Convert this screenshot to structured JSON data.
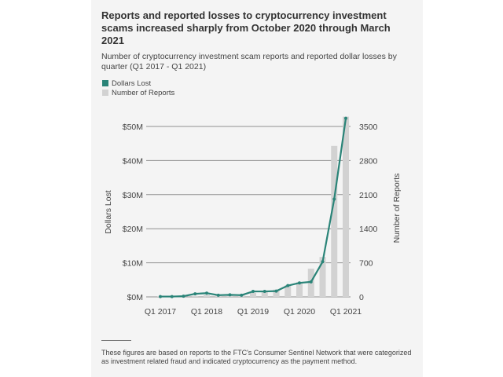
{
  "title": "Reports and reported losses to cryptocurrency investment scams increased sharply from October 2020 through March 2021",
  "subtitle": "Number of cryptocurrency investment scam reports and reported dollar losses by quarter (Q1 2017 - Q1 2021)",
  "legend": [
    {
      "label": "Dollars Lost",
      "color": "#2a8478"
    },
    {
      "label": "Number of Reports",
      "color": "#d2d2d2"
    }
  ],
  "note": "These figures are based on reports to the FTC's Consumer Sentinel Network that were categorized as investment related fraud and indicated cryptocurrency as the payment method.",
  "chart_data": {
    "type": "bar",
    "title": "Reports and reported losses to cryptocurrency investment scams increased sharply from October 2020 through March 2021",
    "subtitle": "Number of cryptocurrency investment scam reports and reported dollar losses by quarter (Q1 2017 - Q1 2021)",
    "ylabel": "Dollars Lost",
    "y2label": "Number of Reports",
    "categories": [
      "Q1 2017",
      "Q2 2017",
      "Q3 2017",
      "Q4 2017",
      "Q1 2018",
      "Q2 2018",
      "Q3 2018",
      "Q4 2018",
      "Q1 2019",
      "Q2 2019",
      "Q3 2019",
      "Q4 2019",
      "Q1 2020",
      "Q2 2020",
      "Q3 2020",
      "Q4 2020",
      "Q1 2021"
    ],
    "x_tick_labels": [
      "Q1 2017",
      "Q1 2018",
      "Q1 2019",
      "Q1 2020",
      "Q1 2021"
    ],
    "y_ticks_labels": [
      "$0M",
      "$10M",
      "$20M",
      "$30M",
      "$40M",
      "$50M"
    ],
    "y2_ticks": [
      0,
      700,
      1400,
      2100,
      2800,
      3500
    ],
    "ylim": [
      0,
      50
    ],
    "y2lim": [
      0,
      3500
    ],
    "legend_position": "top-left",
    "grid": true,
    "series": [
      {
        "name": "Number of Reports",
        "type": "bar",
        "axis": "right",
        "color": "#d2d2d2",
        "values": [
          5,
          10,
          15,
          20,
          40,
          45,
          40,
          50,
          85,
          110,
          150,
          240,
          300,
          580,
          820,
          3100,
          3700
        ]
      },
      {
        "name": "Dollars Lost",
        "type": "line",
        "axis": "left",
        "color": "#2a8478",
        "values": [
          0.1,
          0.1,
          0.2,
          0.9,
          1.1,
          0.5,
          0.6,
          0.5,
          1.6,
          1.6,
          1.7,
          3.3,
          4.1,
          4.4,
          10.3,
          28.7,
          52.4
        ]
      }
    ]
  }
}
